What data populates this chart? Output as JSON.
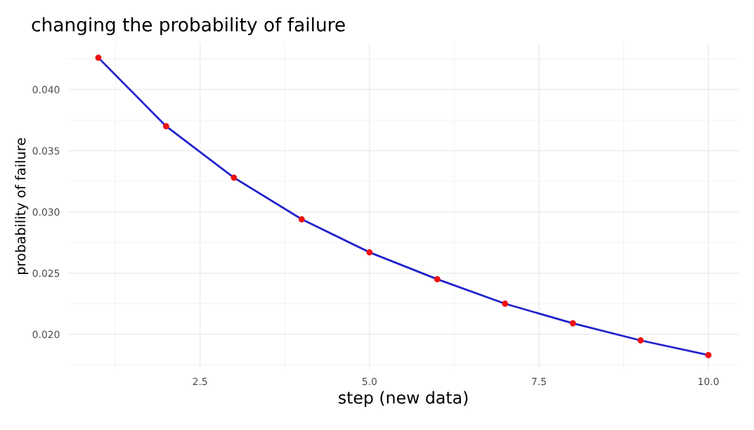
{
  "chart_data": {
    "type": "line",
    "title": "changing the probability of failure",
    "xlabel": "step (new data)",
    "ylabel": "probability of failure",
    "x": [
      1,
      2,
      3,
      4,
      5,
      6,
      7,
      8,
      9,
      10
    ],
    "series": [
      {
        "color": "#2222cc",
        "colors": [
          "#ee1111",
          "#ee1111",
          "#ee1111",
          "#ee1111",
          "#ee1111",
          "#ee1111",
          "#ee1111",
          "#ee1111",
          "#ee1111",
          "#ee1111"
        ],
        "values": [
          0.0426,
          0.037,
          0.0328,
          0.0294,
          0.0267,
          0.0245,
          0.0225,
          0.0209,
          0.0195,
          0.0183
        ]
      }
    ],
    "marker": "circle",
    "line_style": "solid",
    "grid": true,
    "legend": false,
    "xlim": [
      0.55,
      10.45
    ],
    "ylim": [
      0.0171,
      0.0438
    ],
    "xticks": [
      {
        "value": 2.5,
        "label": "2.5"
      },
      {
        "value": 5,
        "label": "5.0"
      },
      {
        "value": 7.5,
        "label": "7.5"
      },
      {
        "value": 10,
        "label": "10.0"
      }
    ],
    "yticks": [
      {
        "value": 0.02,
        "label": "0.020"
      },
      {
        "value": 0.025,
        "label": "0.025"
      },
      {
        "value": 0.03,
        "label": "0.030"
      },
      {
        "value": 0.035,
        "label": "0.035"
      },
      {
        "value": 0.04,
        "label": "0.040"
      }
    ]
  }
}
